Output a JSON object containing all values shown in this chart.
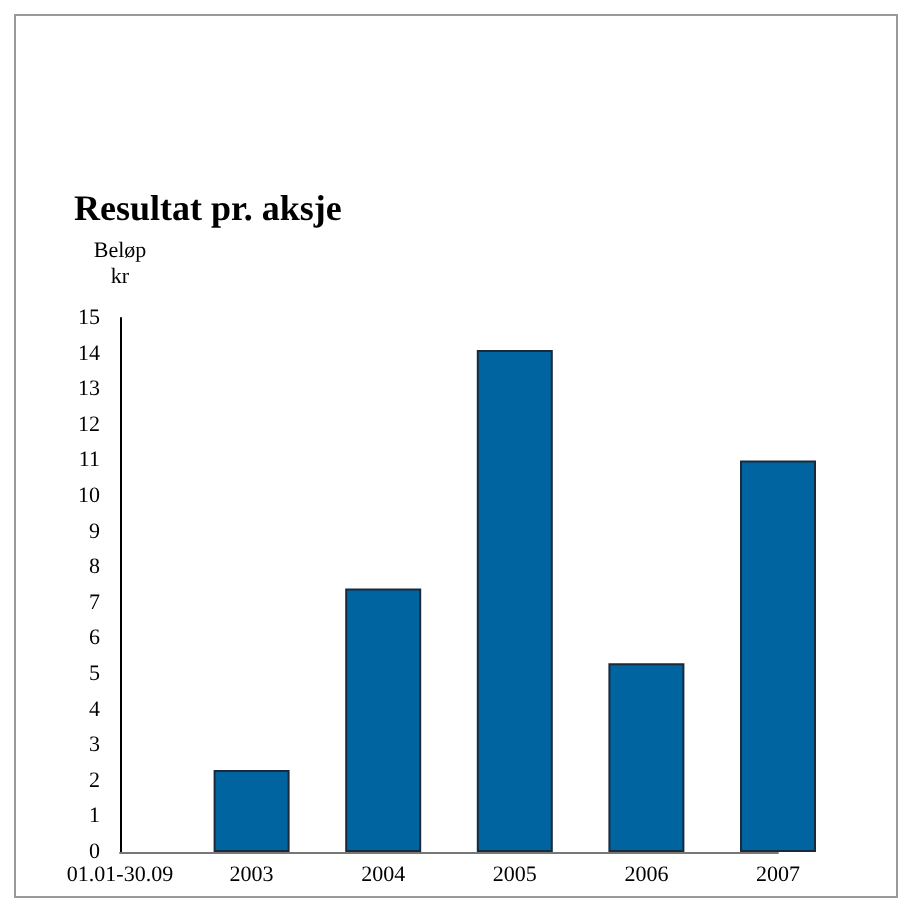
{
  "chart_data": {
    "type": "bar",
    "title": "Resultat pr. aksje",
    "ylabel": "Beløp\nkr",
    "categories": [
      "01.01-30.09",
      "2003",
      "2004",
      "2005",
      "2006",
      "2007"
    ],
    "values": [
      null,
      2.3,
      7.4,
      14.1,
      5.3,
      11.0
    ],
    "color": "#0064a0",
    "ylim": [
      0,
      15
    ],
    "yticks": [
      0,
      1,
      2,
      3,
      4,
      5,
      6,
      7,
      8,
      9,
      10,
      11,
      12,
      13,
      14,
      15
    ],
    "grid": false
  }
}
